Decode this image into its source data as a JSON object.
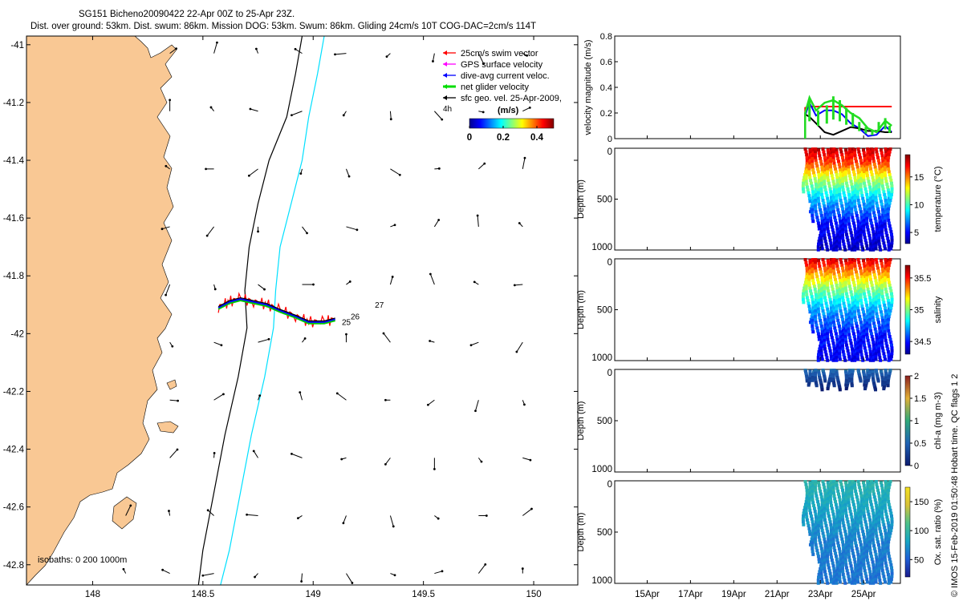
{
  "header": {
    "line1": "SG151 Bicheno20090422 22-Apr 00Z to 25-Apr 23Z.",
    "line2": "Dist. over ground: 53km. Dist. swum: 86km. Mission DOG: 53km. Swum: 86km. Gliding 24cm/s 10T COG-DAC=2cm/s 114T"
  },
  "side_note": "© IMOS 15-Feb-2019 01:50:48 Hobart time. QC flags 1  2",
  "chart_data": [
    {
      "id": "map",
      "type": "scatter",
      "x_ticks": [
        148,
        148.5,
        149,
        149.5,
        150
      ],
      "y_ticks": [
        -41,
        -41.2,
        -41.4,
        -41.6,
        -41.8,
        -42,
        -42.2,
        -42.4,
        -42.6,
        -42.8
      ],
      "xlim": [
        147.7,
        150.2
      ],
      "ylim": [
        -42.87,
        -40.97
      ],
      "land_color": "#F9C894",
      "legend": [
        {
          "label": "25cm/s swim vector",
          "color": "#ff0000"
        },
        {
          "label": "GPS surface velocity",
          "color": "#ff00ff"
        },
        {
          "label": "dive-avg current veloc.",
          "color": "#0000ff"
        },
        {
          "label": "net glider velocity",
          "color": "#00dd00"
        },
        {
          "label": "sfc geo. vel. 25-Apr-2009,",
          "color": "#000000"
        }
      ],
      "legend_extra": "4h",
      "colorbar": {
        "label": "(m/s)",
        "ticks": [
          "0",
          "0.2",
          "0.4"
        ],
        "range": [
          0,
          0.5
        ]
      },
      "isobaths_label": "isobaths: 0   200  1000m",
      "isobath_200": [
        [
          148.95,
          -40.97
        ],
        [
          148.92,
          -41.1
        ],
        [
          148.88,
          -41.25
        ],
        [
          148.8,
          -41.4
        ],
        [
          148.75,
          -41.55
        ],
        [
          148.71,
          -41.7
        ],
        [
          148.69,
          -41.85
        ],
        [
          148.7,
          -41.98
        ],
        [
          148.66,
          -42.15
        ],
        [
          148.6,
          -42.35
        ],
        [
          148.55,
          -42.55
        ],
        [
          148.5,
          -42.75
        ],
        [
          148.48,
          -42.87
        ]
      ],
      "isobath_1000": [
        [
          149.05,
          -40.97
        ],
        [
          149.02,
          -41.1
        ],
        [
          148.98,
          -41.25
        ],
        [
          148.95,
          -41.4
        ],
        [
          148.9,
          -41.55
        ],
        [
          148.85,
          -41.7
        ],
        [
          148.83,
          -41.85
        ],
        [
          148.82,
          -41.98
        ],
        [
          148.78,
          -42.15
        ],
        [
          148.72,
          -42.35
        ],
        [
          148.67,
          -42.55
        ],
        [
          148.62,
          -42.75
        ],
        [
          148.58,
          -42.87
        ]
      ],
      "track": [
        [
          148.57,
          -41.91
        ],
        [
          148.62,
          -41.89
        ],
        [
          148.67,
          -41.88
        ],
        [
          148.73,
          -41.89
        ],
        [
          148.79,
          -41.9
        ],
        [
          148.85,
          -41.92
        ],
        [
          148.92,
          -41.94
        ],
        [
          148.98,
          -41.96
        ],
        [
          149.05,
          -41.96
        ],
        [
          149.1,
          -41.95
        ]
      ],
      "day_labels": [
        {
          "text": "25",
          "x": 149.13,
          "y": -41.97
        },
        {
          "text": "26",
          "x": 149.17,
          "y": -41.95
        },
        {
          "text": "27",
          "x": 149.28,
          "y": -41.91
        }
      ]
    },
    {
      "id": "velocity",
      "type": "line",
      "ylabel": "velocity magnitude (m/s)",
      "ylim": [
        0,
        0.8
      ],
      "y_ticks": [
        "0",
        "0.2",
        "0.4",
        "0.6",
        "0.8"
      ],
      "x": [
        22.3,
        22.5,
        22.8,
        23.2,
        23.6,
        24.0,
        24.4,
        24.8,
        25.2,
        25.6,
        26.0,
        26.3
      ],
      "series": [
        {
          "color": "#ff0000",
          "values": [
            0.24,
            0.25,
            0.25,
            0.25,
            0.25,
            0.25,
            0.25,
            0.25,
            0.25,
            0.25,
            0.25,
            0.25
          ]
        },
        {
          "color": "#0000ff",
          "values": [
            0.18,
            0.28,
            0.18,
            0.22,
            0.22,
            0.19,
            0.12,
            0.08,
            0.02,
            0.03,
            0.1,
            0.05
          ]
        },
        {
          "color": "#000000",
          "values": [
            0.19,
            0.17,
            0.12,
            0.05,
            0.03,
            0.06,
            0.09,
            0.08,
            0.06,
            0.06,
            0.05,
            0.05
          ]
        },
        {
          "color": "#22dd22",
          "values": [
            0.2,
            0.32,
            0.22,
            0.28,
            0.3,
            0.26,
            0.2,
            0.16,
            0.08,
            0.05,
            0.14,
            0.1
          ]
        }
      ]
    },
    {
      "id": "temperature",
      "type": "heatmap",
      "ylabel": "Depth (m)",
      "y_ticks": [
        "0",
        "500",
        "1000"
      ],
      "colorbar_label": "temperature (°C)",
      "colorbar_ticks": [
        "15",
        "10",
        "5"
      ],
      "vrange": [
        3,
        19
      ],
      "profile": [
        {
          "d": 0,
          "v": 18
        },
        {
          "d": 150,
          "v": 16
        },
        {
          "d": 300,
          "v": 12
        },
        {
          "d": 500,
          "v": 8
        },
        {
          "d": 750,
          "v": 5
        },
        {
          "d": 1000,
          "v": 4
        }
      ]
    },
    {
      "id": "salinity",
      "type": "heatmap",
      "ylabel": "Depth (m)",
      "y_ticks": [
        "0",
        "500",
        "1000"
      ],
      "colorbar_label": "salinity",
      "colorbar_ticks": [
        "35.5",
        "35",
        "34.5"
      ],
      "vrange": [
        34.3,
        35.7
      ],
      "profile": [
        {
          "d": 0,
          "v": 35.6
        },
        {
          "d": 150,
          "v": 35.3
        },
        {
          "d": 300,
          "v": 35.0
        },
        {
          "d": 500,
          "v": 34.7
        },
        {
          "d": 750,
          "v": 34.5
        },
        {
          "d": 1000,
          "v": 34.45
        }
      ]
    },
    {
      "id": "chlorophyll",
      "type": "heatmap",
      "ylabel": "Depth (m)",
      "y_ticks": [
        "0",
        "500",
        "1000"
      ],
      "colorbar_label": "chl-a (mg m-3)",
      "colorbar_ticks": [
        "2",
        "1.5",
        "1",
        "0.5",
        "0"
      ],
      "vrange": [
        0,
        2
      ],
      "profile": [
        {
          "d": 0,
          "v": 0.6
        },
        {
          "d": 100,
          "v": 0.3
        },
        {
          "d": 200,
          "v": 0.05
        }
      ]
    },
    {
      "id": "oxygen",
      "type": "heatmap",
      "ylabel": "Depth (m)",
      "y_ticks": [
        "0",
        "500",
        "1000"
      ],
      "colorbar_label": "Ox. sat. ratio (%)",
      "colorbar_ticks": [
        "150",
        "100",
        "50"
      ],
      "vrange": [
        20,
        175
      ],
      "profile": [
        {
          "d": 0,
          "v": 95
        },
        {
          "d": 300,
          "v": 80
        },
        {
          "d": 600,
          "v": 65
        },
        {
          "d": 1000,
          "v": 60
        }
      ]
    }
  ],
  "time_axis": {
    "ticks": [
      "15Apr",
      "17Apr",
      "19Apr",
      "21Apr",
      "23Apr",
      "25Apr"
    ],
    "tick_days": [
      15,
      17,
      19,
      21,
      23,
      25
    ],
    "range": [
      13.5,
      26.7
    ]
  }
}
